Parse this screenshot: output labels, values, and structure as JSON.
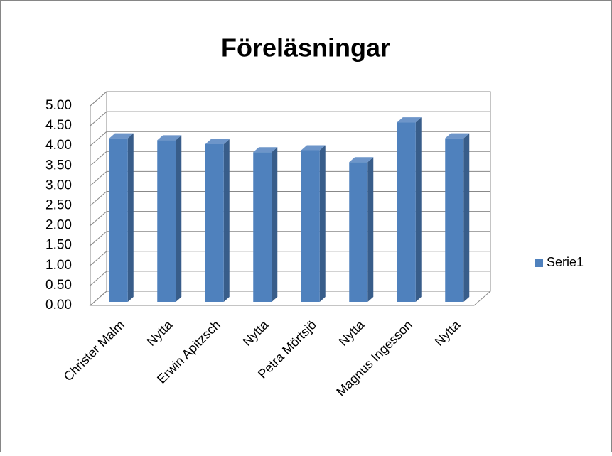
{
  "chart_data": {
    "type": "bar3d",
    "title": "Föreläsningar",
    "categories": [
      "Christer Malm",
      "Nytta",
      "Erwin Apitzsch",
      "Nytta",
      "Petra Mörtsjö",
      "Nytta",
      "Magnus Ingesson",
      "Nytta"
    ],
    "series": [
      {
        "name": "Serie1",
        "color": "#4f81bd",
        "values": [
          4.1,
          4.05,
          3.95,
          3.75,
          3.8,
          3.5,
          4.5,
          4.1
        ]
      }
    ],
    "ylim": [
      0,
      5
    ],
    "yticks": [
      {
        "value": 0,
        "label": "0.00"
      },
      {
        "value": 0.5,
        "label": "0.50"
      },
      {
        "value": 1,
        "label": "1.00"
      },
      {
        "value": 1.5,
        "label": "1.50"
      },
      {
        "value": 2,
        "label": "2.00"
      },
      {
        "value": 2.5,
        "label": "2.50"
      },
      {
        "value": 3,
        "label": "3.00"
      },
      {
        "value": 3.5,
        "label": "3.50"
      },
      {
        "value": 4,
        "label": "4.00"
      },
      {
        "value": 4.5,
        "label": "4.50"
      },
      {
        "value": 5,
        "label": "5.00"
      }
    ],
    "grid": true,
    "legend": "right"
  }
}
